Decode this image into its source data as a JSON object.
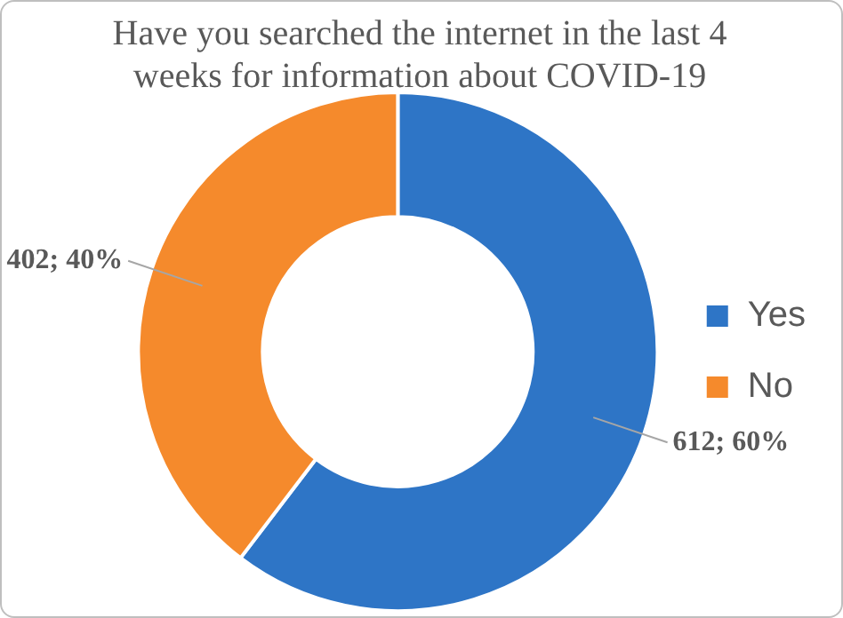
{
  "chart_data": {
    "type": "donut",
    "title": "Have you searched the internet in the last 4 weeks for information about COVID-19",
    "categories": [
      "Yes",
      "No"
    ],
    "values": [
      612,
      402
    ],
    "value_labels": [
      "612; 60%",
      "402; 40%"
    ],
    "colors": [
      "#2e75c6",
      "#f58a2c"
    ],
    "legend": "right"
  }
}
